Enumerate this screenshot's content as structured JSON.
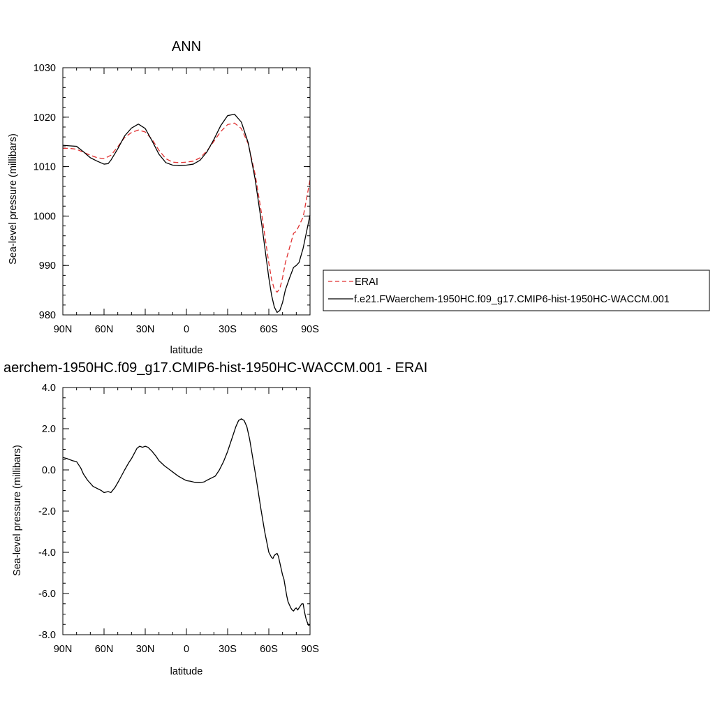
{
  "chart_data": [
    {
      "type": "line",
      "title": "ANN",
      "xlabel": "latitude",
      "ylabel": "Sea-level pressure (millibars)",
      "xlim": [
        -90,
        90
      ],
      "ylim": [
        980,
        1030
      ],
      "x_ticks": [
        -90,
        -60,
        -30,
        0,
        30,
        60,
        90
      ],
      "x_tick_labels": [
        "90N",
        "60N",
        "30N",
        "0",
        "30S",
        "60S",
        "90S"
      ],
      "y_ticks": [
        980,
        990,
        1000,
        1010,
        1020,
        1030
      ],
      "y_tick_labels": [
        "980",
        "990",
        "1000",
        "1010",
        "1020",
        "1030"
      ],
      "legend": {
        "placement": "right",
        "entries": [
          "ERAI",
          "f.e21.FWaerchem-1950HC.f09_g17.CMIP6-hist-1950HC-WACCM.001"
        ]
      },
      "series": [
        {
          "name": "ERAI",
          "color": "#e03030",
          "style": "dashed",
          "x": [
            -90,
            -85,
            -80,
            -75,
            -70,
            -65,
            -60,
            -55,
            -50,
            -45,
            -40,
            -35,
            -30,
            -25,
            -20,
            -15,
            -10,
            -5,
            0,
            5,
            10,
            15,
            20,
            25,
            30,
            35,
            40,
            45,
            50,
            55,
            60,
            62,
            64,
            66,
            68,
            70,
            72,
            75,
            78,
            80,
            85,
            90
          ],
          "y": [
            1013.7,
            1013.7,
            1013.5,
            1012.9,
            1012.3,
            1011.8,
            1011.6,
            1012.3,
            1014.0,
            1015.9,
            1016.9,
            1017.4,
            1017.0,
            1015.5,
            1013.3,
            1011.6,
            1010.9,
            1010.8,
            1010.9,
            1011.1,
            1011.8,
            1013.2,
            1015.1,
            1017.1,
            1018.5,
            1018.8,
            1017.7,
            1014.6,
            1008.5,
            1000.0,
            990.5,
            987.2,
            985.2,
            984.6,
            985.3,
            987.5,
            990.5,
            993.5,
            996.5,
            996.9,
            999.8,
            1007.3
          ]
        },
        {
          "name": "f.e21.FWaerchem-1950HC.f09_g17.CMIP6-hist-1950HC-WACCM.001",
          "color": "#000000",
          "style": "solid",
          "x": [
            -90,
            -85,
            -80,
            -75,
            -70,
            -65,
            -60,
            -57,
            -55,
            -50,
            -45,
            -40,
            -35,
            -30,
            -25,
            -20,
            -15,
            -10,
            -5,
            0,
            5,
            10,
            15,
            20,
            25,
            30,
            35,
            40,
            45,
            50,
            55,
            60,
            62,
            64,
            66,
            68,
            70,
            72,
            75,
            78,
            80,
            82,
            85,
            90
          ],
          "y": [
            1014.3,
            1014.2,
            1014.1,
            1013.0,
            1011.8,
            1011.1,
            1010.5,
            1010.6,
            1011.3,
            1013.6,
            1016.2,
            1017.8,
            1018.6,
            1017.7,
            1015.2,
            1012.5,
            1010.8,
            1010.3,
            1010.2,
            1010.3,
            1010.5,
            1011.3,
            1013.0,
            1015.5,
            1018.3,
            1020.3,
            1020.6,
            1019.0,
            1014.8,
            1007.5,
            998.0,
            987.5,
            984.0,
            981.6,
            980.5,
            980.9,
            982.5,
            985.0,
            987.4,
            989.6,
            990.0,
            990.6,
            993.5,
            1000.2
          ]
        }
      ]
    },
    {
      "type": "line",
      "title": "aerchem-1950HC.f09_g17.CMIP6-hist-1950HC-WACCM.001 - ERAI",
      "xlabel": "latitude",
      "ylabel": "Sea-level pressure (millibars)",
      "xlim": [
        -90,
        90
      ],
      "ylim": [
        -8,
        4
      ],
      "x_ticks": [
        -90,
        -60,
        -30,
        0,
        30,
        60,
        90
      ],
      "x_tick_labels": [
        "90N",
        "60N",
        "30N",
        "0",
        "30S",
        "60S",
        "90S"
      ],
      "y_ticks": [
        -8,
        -6,
        -4,
        -2,
        0,
        2,
        4
      ],
      "y_tick_labels": [
        "-8.0",
        "-6.0",
        "-4.0",
        "-2.0",
        "0.0",
        "2.0",
        "4.0"
      ],
      "series": [
        {
          "color": "#000000",
          "style": "solid",
          "x": [
            -90,
            -87,
            -83,
            -80,
            -77,
            -75,
            -72,
            -68,
            -65,
            -62,
            -60,
            -57,
            -55,
            -52,
            -49,
            -45,
            -42,
            -40,
            -38,
            -36,
            -34,
            -32,
            -30,
            -28,
            -25,
            -22,
            -20,
            -16,
            -13,
            -10,
            -6,
            -2,
            0,
            3,
            6,
            10,
            13,
            15,
            18,
            21,
            24,
            27,
            30,
            33,
            36,
            38,
            40,
            42,
            44,
            46,
            48,
            51,
            54,
            57,
            60,
            62,
            63,
            64,
            65,
            66,
            67,
            68,
            69,
            70,
            71,
            72,
            73,
            74,
            75,
            76,
            77,
            78,
            79,
            80,
            81,
            82,
            83,
            84,
            85,
            86,
            87,
            88,
            89,
            90
          ],
          "y": [
            0.6,
            0.55,
            0.45,
            0.4,
            0.1,
            -0.2,
            -0.5,
            -0.8,
            -0.9,
            -1.0,
            -1.1,
            -1.05,
            -1.1,
            -0.85,
            -0.5,
            0.0,
            0.35,
            0.55,
            0.8,
            1.05,
            1.15,
            1.1,
            1.15,
            1.1,
            0.9,
            0.65,
            0.45,
            0.2,
            0.05,
            -0.1,
            -0.3,
            -0.45,
            -0.52,
            -0.55,
            -0.6,
            -0.62,
            -0.58,
            -0.5,
            -0.4,
            -0.3,
            0.0,
            0.4,
            0.9,
            1.5,
            2.1,
            2.4,
            2.48,
            2.4,
            2.1,
            1.5,
            0.7,
            -0.5,
            -1.8,
            -3.0,
            -4.0,
            -4.25,
            -4.3,
            -4.15,
            -4.1,
            -4.05,
            -4.2,
            -4.5,
            -4.8,
            -5.1,
            -5.3,
            -5.7,
            -6.1,
            -6.4,
            -6.55,
            -6.7,
            -6.8,
            -6.85,
            -6.75,
            -6.7,
            -6.8,
            -6.7,
            -6.6,
            -6.5,
            -6.5,
            -6.9,
            -7.2,
            -7.4,
            -7.55,
            -7.5
          ]
        }
      ]
    }
  ]
}
